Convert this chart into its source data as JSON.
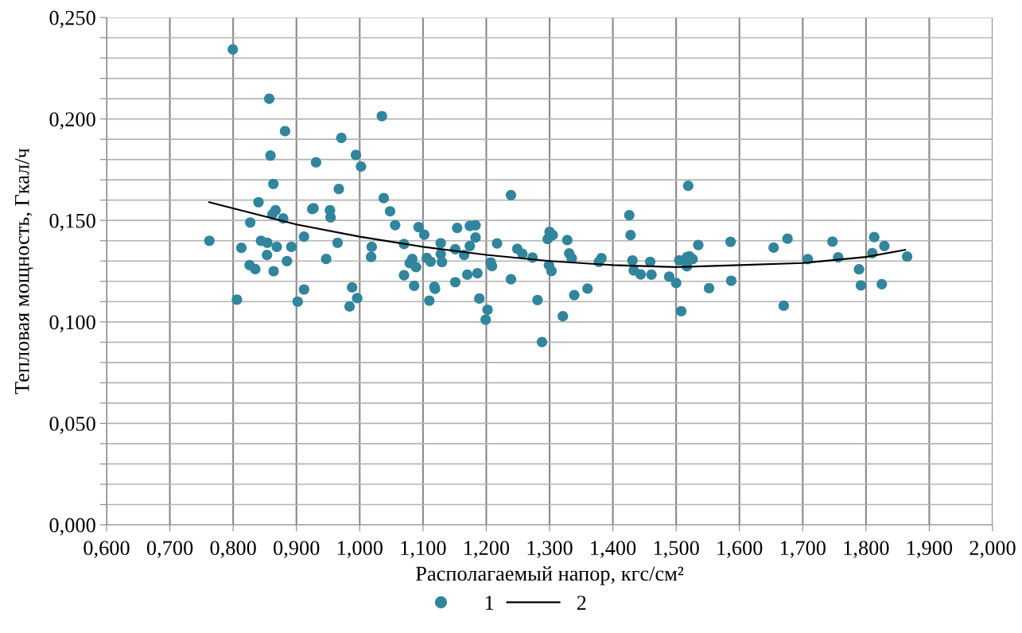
{
  "chart_data": {
    "type": "scatter",
    "xlabel": "Располагаемый напор, кгс/см²",
    "ylabel": "Тепловая мощность, Гкал/ч",
    "xlim": [
      0.6,
      2.0
    ],
    "ylim": [
      0.0,
      0.25
    ],
    "xticks": [
      {
        "value": 0.6,
        "label": "0,600"
      },
      {
        "value": 0.7,
        "label": "0,700"
      },
      {
        "value": 0.8,
        "label": "0,800"
      },
      {
        "value": 0.9,
        "label": "0,900"
      },
      {
        "value": 1.0,
        "label": "1,000"
      },
      {
        "value": 1.1,
        "label": "1,100"
      },
      {
        "value": 1.2,
        "label": "1,200"
      },
      {
        "value": 1.3,
        "label": "1,300"
      },
      {
        "value": 1.4,
        "label": "1,400"
      },
      {
        "value": 1.5,
        "label": "1,500"
      },
      {
        "value": 1.6,
        "label": "1,600"
      },
      {
        "value": 1.7,
        "label": "1,700"
      },
      {
        "value": 1.8,
        "label": "1,800"
      },
      {
        "value": 1.9,
        "label": "1,900"
      },
      {
        "value": 2.0,
        "label": "2,000"
      }
    ],
    "yticks": [
      {
        "value": 0.0,
        "label": "0,000"
      },
      {
        "value": 0.01,
        "label": null
      },
      {
        "value": 0.02,
        "label": null
      },
      {
        "value": 0.03,
        "label": null
      },
      {
        "value": 0.04,
        "label": null
      },
      {
        "value": 0.05,
        "label": "0,050"
      },
      {
        "value": 0.06,
        "label": null
      },
      {
        "value": 0.07,
        "label": null
      },
      {
        "value": 0.08,
        "label": null
      },
      {
        "value": 0.09,
        "label": null
      },
      {
        "value": 0.1,
        "label": "0,100"
      },
      {
        "value": 0.11,
        "label": null
      },
      {
        "value": 0.12,
        "label": null
      },
      {
        "value": 0.13,
        "label": null
      },
      {
        "value": 0.14,
        "label": null
      },
      {
        "value": 0.15,
        "label": "0,150"
      },
      {
        "value": 0.16,
        "label": null
      },
      {
        "value": 0.17,
        "label": null
      },
      {
        "value": 0.18,
        "label": null
      },
      {
        "value": 0.19,
        "label": null
      },
      {
        "value": 0.2,
        "label": "0,200"
      },
      {
        "value": 0.21,
        "label": null
      },
      {
        "value": 0.22,
        "label": null
      },
      {
        "value": 0.23,
        "label": null
      },
      {
        "value": 0.24,
        "label": null
      },
      {
        "value": 0.25,
        "label": "0,250"
      }
    ],
    "grid": true,
    "legend": "bottom",
    "series": [
      {
        "name": "1",
        "marker": "circle",
        "color": "#31859c",
        "x": [
          0.7995,
          0.857,
          0.882,
          0.859,
          0.8635,
          0.84,
          0.867,
          0.862,
          0.827,
          0.879,
          0.7625,
          0.813,
          0.844,
          0.854,
          0.8535,
          0.869,
          0.892,
          0.885,
          0.826,
          0.835,
          0.864,
          0.806,
          0.912,
          0.902,
          0.912,
          0.931,
          0.925,
          0.927,
          0.953,
          0.954,
          0.947,
          0.965,
          0.967,
          0.971,
          0.994,
          1.002,
          1.035,
          0.988,
          0.984,
          0.996,
          1.019,
          1.018,
          1.038,
          1.048,
          1.056,
          1.07,
          1.093,
          1.102,
          1.128,
          1.083,
          1.079,
          1.089,
          1.07,
          1.086,
          1.106,
          1.112,
          1.128,
          1.13,
          1.118,
          1.119,
          1.11,
          1.154,
          1.151,
          1.151,
          1.165,
          1.17,
          1.174,
          1.183,
          1.174,
          1.183,
          1.186,
          1.189,
          1.202,
          1.199,
          1.207,
          1.209,
          1.217,
          1.239,
          1.239,
          1.249,
          1.257,
          1.273,
          1.281,
          1.288,
          1.297,
          1.3,
          1.305,
          1.299,
          1.303,
          1.321,
          1.328,
          1.331,
          1.335,
          1.339,
          1.36,
          1.378,
          1.382,
          1.426,
          1.428,
          1.431,
          1.433,
          1.444,
          1.459,
          1.461,
          1.489,
          1.5,
          1.508,
          1.505,
          1.517,
          1.521,
          1.526,
          1.517,
          1.519,
          1.535,
          1.552,
          1.586,
          1.587,
          1.654,
          1.676,
          1.67,
          1.708,
          1.747,
          1.756,
          1.789,
          1.792,
          1.813,
          1.81,
          1.829,
          1.825,
          1.865
        ],
        "values": [
          0.2343,
          0.21,
          0.194,
          0.182,
          0.168,
          0.159,
          0.155,
          0.153,
          0.149,
          0.151,
          0.14,
          0.1365,
          0.14,
          0.139,
          0.133,
          0.137,
          0.137,
          0.13,
          0.128,
          0.126,
          0.125,
          0.111,
          0.142,
          0.11,
          0.116,
          0.1786,
          0.1556,
          0.156,
          0.155,
          0.1515,
          0.131,
          0.139,
          0.1655,
          0.1907,
          0.1823,
          0.1766,
          0.2014,
          0.117,
          0.1076,
          0.1117,
          0.137,
          0.132,
          0.161,
          0.1545,
          0.1477,
          0.1384,
          0.1467,
          0.143,
          0.1388,
          0.131,
          0.129,
          0.127,
          0.123,
          0.1178,
          0.1315,
          0.1297,
          0.1335,
          0.1295,
          0.1173,
          0.1163,
          0.1105,
          0.1463,
          0.1358,
          0.1196,
          0.133,
          0.1233,
          0.1473,
          0.1476,
          0.1374,
          0.1416,
          0.124,
          0.1115,
          0.106,
          0.1011,
          0.1293,
          0.1275,
          0.1387,
          0.1625,
          0.121,
          0.136,
          0.1336,
          0.1317,
          0.1108,
          0.0901,
          0.1408,
          0.1444,
          0.1428,
          0.128,
          0.1251,
          0.1028,
          0.1403,
          0.1338,
          0.1314,
          0.1132,
          0.1164,
          0.1296,
          0.1314,
          0.1526,
          0.1428,
          0.1303,
          0.1254,
          0.1234,
          0.1296,
          0.1233,
          0.1223,
          0.1192,
          0.1053,
          0.1304,
          0.1319,
          0.1323,
          0.1309,
          0.1274,
          0.1671,
          0.1379,
          0.1166,
          0.1395,
          0.1203,
          0.1366,
          0.141,
          0.108,
          0.1309,
          0.1396,
          0.1318,
          0.1259,
          0.118,
          0.1418,
          0.1339,
          0.1374,
          0.1186,
          0.1322
        ]
      },
      {
        "name": "2",
        "type": "line",
        "marker": "none",
        "line_style": "solid",
        "color": "#000000",
        "x": [
          0.762,
          0.8,
          0.9,
          1.0,
          1.1,
          1.2,
          1.3,
          1.4,
          1.5,
          1.6,
          1.7,
          1.8,
          1.862
        ],
        "values": [
          0.159,
          0.156,
          0.148,
          0.142,
          0.137,
          0.133,
          0.13,
          0.128,
          0.127,
          0.128,
          0.129,
          0.132,
          0.1355
        ]
      }
    ]
  }
}
